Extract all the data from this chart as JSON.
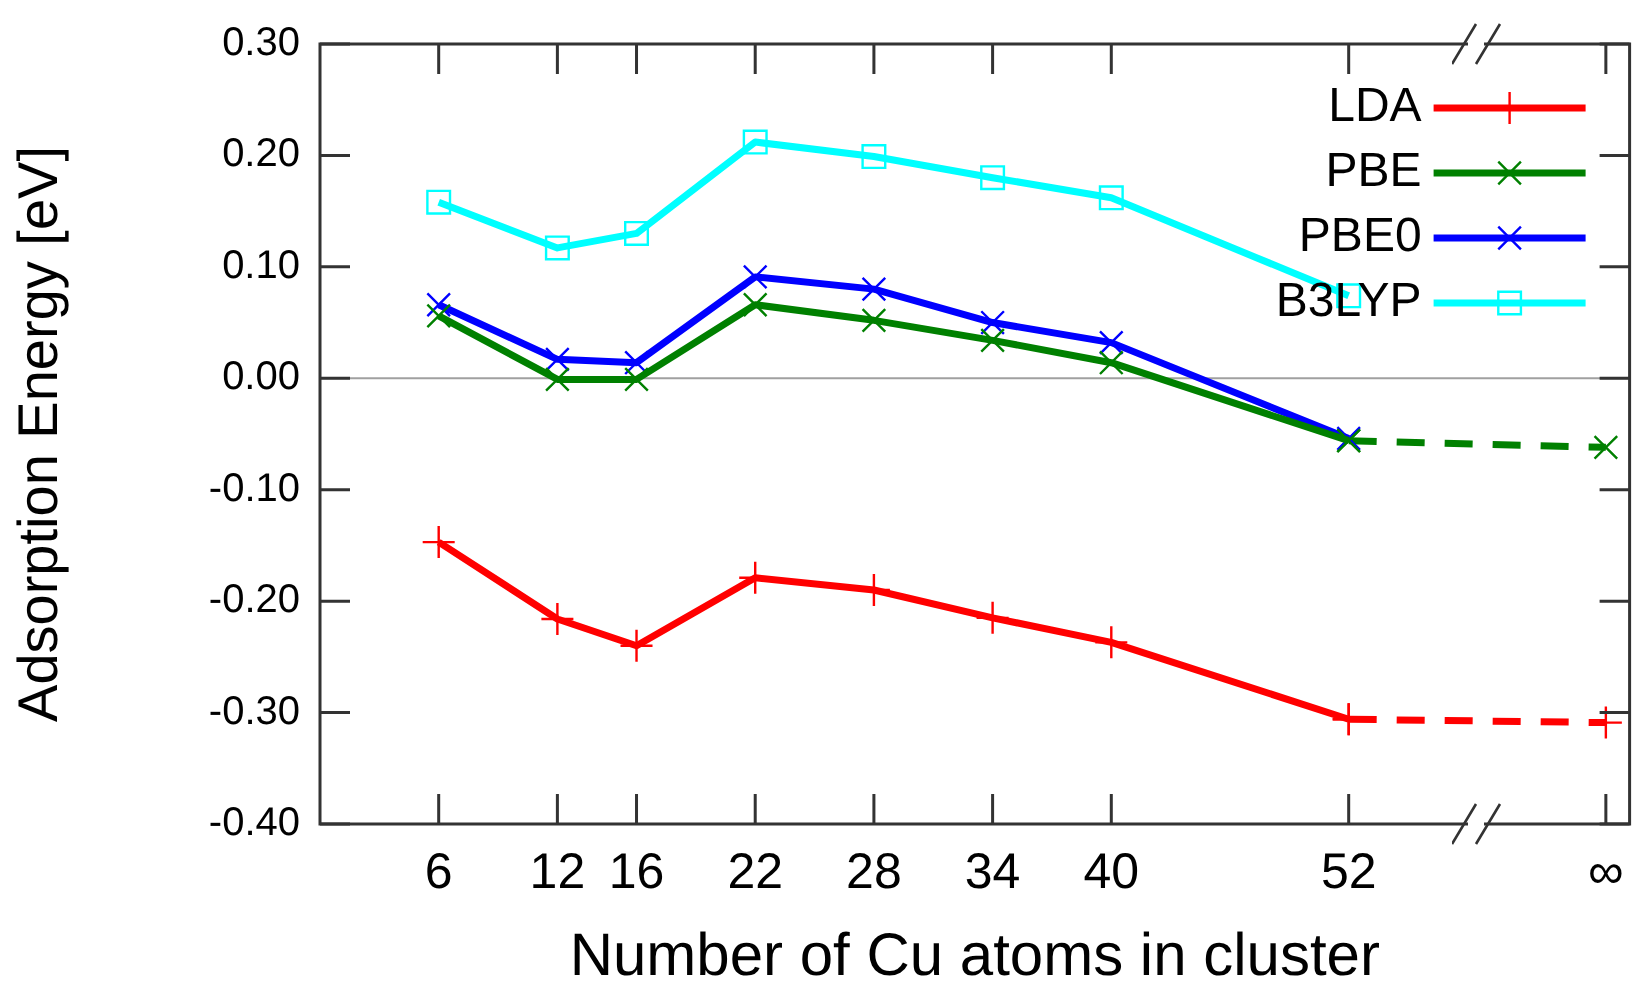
{
  "chart_data": {
    "type": "line",
    "xlabel": "Number of Cu atoms in cluster",
    "ylabel": "Adsorption Energy [eV]",
    "xlim": [
      0,
      66.2
    ],
    "xticks": [
      6,
      12,
      16,
      22,
      28,
      34,
      40,
      52,
      {
        "value": 65,
        "label": "∞"
      }
    ],
    "ylim": [
      -0.4,
      0.3
    ],
    "yticks": [
      {
        "value": -0.4,
        "label": "-0.40"
      },
      {
        "value": -0.3,
        "label": "-0.30"
      },
      {
        "value": -0.2,
        "label": "-0.20"
      },
      {
        "value": -0.1,
        "label": "-0.10"
      },
      {
        "value": 0,
        "label": "0.00"
      },
      {
        "value": 0.1,
        "label": "0.10"
      },
      {
        "value": 0.2,
        "label": "0.20"
      },
      {
        "value": 0.3,
        "label": "0.30"
      }
    ],
    "grid": false,
    "legend": "top right",
    "line_style": "solid",
    "ref_lines": [
      {
        "axis": "y",
        "value": 0,
        "color": "#a0a0a0"
      }
    ],
    "series": [
      {
        "name": "LDA",
        "color": "#ff0000",
        "marker": "plus",
        "x": [
          6,
          12,
          16,
          22,
          28,
          34,
          40,
          52
        ],
        "values": [
          -0.147,
          -0.216,
          -0.24,
          -0.179,
          -0.19,
          -0.215,
          -0.237,
          -0.306
        ]
      },
      {
        "name": "PBE",
        "color": "#008000",
        "marker": "cross",
        "x": [
          6,
          12,
          16,
          22,
          28,
          34,
          40,
          52
        ],
        "values": [
          0.056,
          -0.001,
          -0.001,
          0.066,
          0.052,
          0.034,
          0.014,
          -0.056
        ]
      },
      {
        "name": "PBE0",
        "color": "#0000ff",
        "marker": "cross",
        "x": [
          6,
          12,
          16,
          22,
          28,
          34,
          40,
          52
        ],
        "values": [
          0.066,
          0.017,
          0.014,
          0.091,
          0.08,
          0.05,
          0.032,
          -0.054
        ]
      },
      {
        "name": "B3LYP",
        "color": "#00ffff",
        "marker": "square",
        "x": [
          6,
          12,
          16,
          22,
          28,
          34,
          40,
          52
        ],
        "values": [
          0.158,
          0.117,
          0.13,
          0.212,
          0.199,
          0.18,
          0.162,
          0.074
        ]
      },
      {
        "color": "#ff0000",
        "marker": "plus",
        "line_style": "dashed",
        "x": [
          52,
          65
        ],
        "values": [
          -0.306,
          -0.309
        ]
      },
      {
        "color": "#008000",
        "marker": "cross",
        "line_style": "dashed",
        "x": [
          52,
          65
        ],
        "values": [
          -0.056,
          -0.062
        ]
      }
    ]
  }
}
